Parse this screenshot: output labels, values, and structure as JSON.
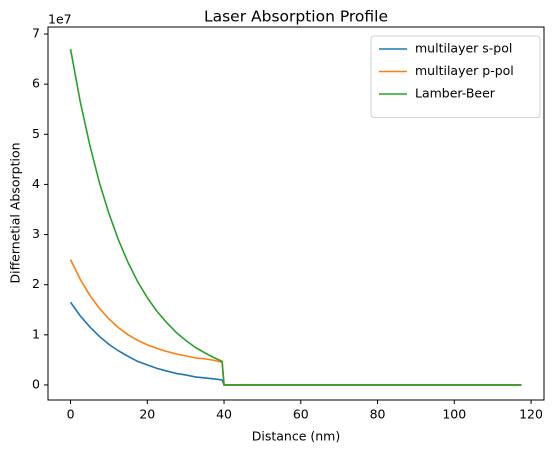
{
  "chart_data": {
    "type": "line",
    "title": "Laser Absorption Profile",
    "x_label": "Distance (nm)",
    "y_label": "Differnetial Absorption",
    "y_offset_label": "1e7",
    "x": [
      0,
      2.5,
      5,
      7.5,
      10,
      12.5,
      15,
      17.5,
      20,
      22.5,
      25,
      27.5,
      30,
      32.5,
      35,
      37.5,
      39.5,
      40,
      117.5
    ],
    "series": [
      {
        "name": "multilayer s-pol",
        "color": "#1f77b4",
        "values": [
          1.65,
          1.38,
          1.16,
          0.97,
          0.81,
          0.68,
          0.57,
          0.47,
          0.4,
          0.33,
          0.28,
          0.23,
          0.2,
          0.16,
          0.14,
          0.12,
          0.1,
          0,
          0
        ]
      },
      {
        "name": "multilayer p-pol",
        "color": "#ff7f0e",
        "values": [
          2.5,
          2.11,
          1.79,
          1.53,
          1.32,
          1.14,
          1.0,
          0.89,
          0.8,
          0.73,
          0.67,
          0.62,
          0.58,
          0.54,
          0.52,
          0.49,
          0.45,
          0,
          0
        ]
      },
      {
        "name": "Lamber-Beer",
        "color": "#2ca02c",
        "values": [
          6.7,
          5.66,
          4.79,
          4.04,
          3.42,
          2.89,
          2.44,
          2.06,
          1.74,
          1.47,
          1.25,
          1.05,
          0.89,
          0.75,
          0.64,
          0.54,
          0.47,
          0,
          0
        ]
      }
    ],
    "xlim": [
      -5.875,
      123.375
    ],
    "xticks": [
      0,
      20,
      40,
      60,
      80,
      100,
      120
    ],
    "ylim": [
      -0.3,
      7.14
    ],
    "yticks": [
      0,
      1,
      2,
      3,
      4,
      5,
      6,
      7
    ],
    "legend": "upper right",
    "grid": false
  }
}
